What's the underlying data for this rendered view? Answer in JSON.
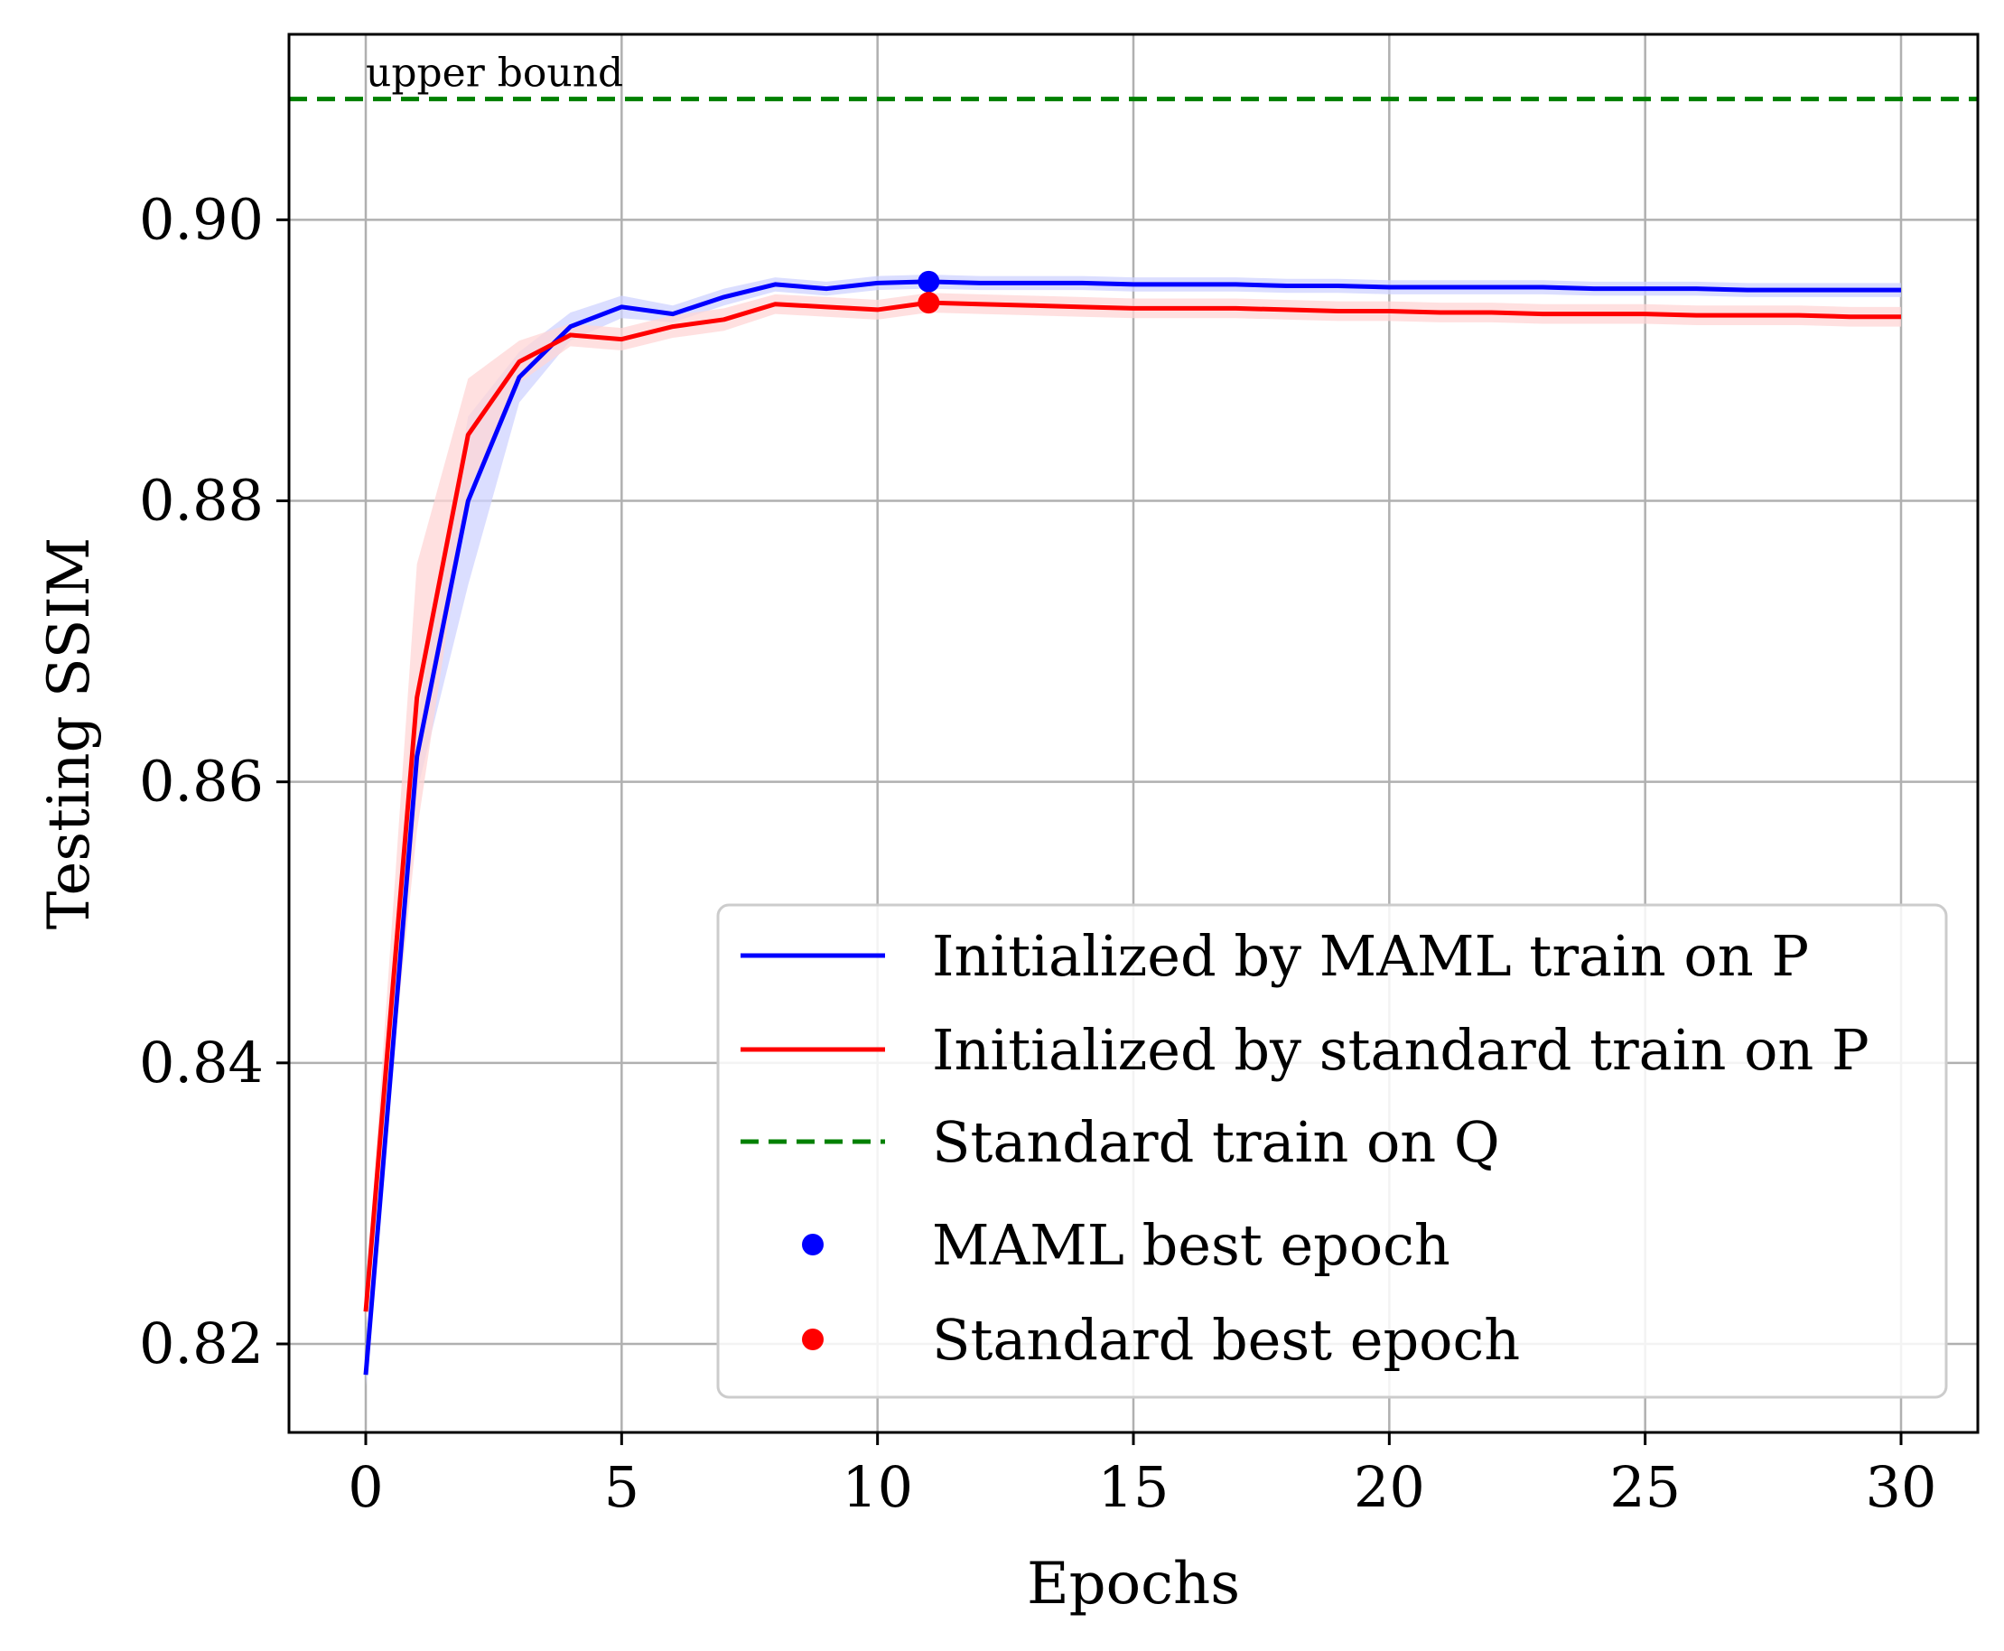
{
  "chart_data": {
    "type": "line",
    "xlabel": "Epochs",
    "ylabel": "Testing SSIM",
    "xlim": [
      -1.5,
      31.5
    ],
    "ylim": [
      0.8137,
      0.9132
    ],
    "xticks": [
      0,
      5,
      10,
      15,
      20,
      25,
      30
    ],
    "xtick_labels": [
      "0",
      "5",
      "10",
      "15",
      "20",
      "25",
      "30"
    ],
    "yticks": [
      0.82,
      0.84,
      0.86,
      0.88,
      0.9
    ],
    "ytick_labels": [
      "0.82",
      "0.84",
      "0.86",
      "0.88",
      "0.90"
    ],
    "grid": true,
    "legend_position": "lower-right",
    "x": [
      0,
      1,
      2,
      3,
      4,
      5,
      6,
      7,
      8,
      9,
      10,
      11,
      12,
      13,
      14,
      15,
      16,
      17,
      18,
      19,
      20,
      21,
      22,
      23,
      24,
      25,
      26,
      27,
      28,
      29,
      30
    ],
    "series": [
      {
        "name": "Initialized by MAML train on P",
        "color": "#0000ff",
        "band_color": "#cfd3ff",
        "values": [
          0.8178,
          0.8618,
          0.88,
          0.8888,
          0.8924,
          0.8938,
          0.8933,
          0.8945,
          0.8954,
          0.8951,
          0.8955,
          0.8956,
          0.8955,
          0.8955,
          0.8955,
          0.8954,
          0.8954,
          0.8954,
          0.8953,
          0.8953,
          0.8952,
          0.8952,
          0.8952,
          0.8952,
          0.8951,
          0.8951,
          0.8951,
          0.895,
          0.895,
          0.895,
          0.895
        ],
        "spread": [
          0.0008,
          0.0025,
          0.006,
          0.0018,
          0.001,
          0.0008,
          0.0006,
          0.0006,
          0.0005,
          0.0005,
          0.0005,
          0.0005,
          0.0005,
          0.0005,
          0.0005,
          0.0005,
          0.0005,
          0.0005,
          0.0005,
          0.0005,
          0.0005,
          0.0005,
          0.0005,
          0.0005,
          0.0005,
          0.0005,
          0.0005,
          0.0005,
          0.0005,
          0.0005,
          0.0005
        ]
      },
      {
        "name": "Initialized by standard train on P",
        "color": "#ff0000",
        "band_color": "#ffd6d6",
        "values": [
          0.8223,
          0.866,
          0.8847,
          0.8899,
          0.8918,
          0.8915,
          0.8924,
          0.8929,
          0.894,
          0.8938,
          0.8936,
          0.8941,
          0.894,
          0.8939,
          0.8938,
          0.8937,
          0.8937,
          0.8937,
          0.8936,
          0.8935,
          0.8935,
          0.8934,
          0.8934,
          0.8933,
          0.8933,
          0.8933,
          0.8932,
          0.8932,
          0.8932,
          0.8931,
          0.8931
        ],
        "spread": [
          0.0008,
          0.0095,
          0.004,
          0.0015,
          0.0008,
          0.0008,
          0.0008,
          0.0008,
          0.0007,
          0.0007,
          0.0007,
          0.0007,
          0.0007,
          0.0007,
          0.0007,
          0.0007,
          0.0007,
          0.0007,
          0.0007,
          0.0007,
          0.0007,
          0.0007,
          0.0007,
          0.0007,
          0.0007,
          0.0007,
          0.0007,
          0.0007,
          0.0007,
          0.0007,
          0.0007
        ]
      }
    ],
    "reference_line": {
      "name": "Standard train on Q",
      "color": "#008000",
      "style": "dashed",
      "value": 0.9086,
      "annotation": "upper bound",
      "annotation_x": 0
    },
    "markers": [
      {
        "name": "MAML best epoch",
        "color": "#0000ff",
        "x": 11,
        "y": 0.8956
      },
      {
        "name": "Standard best epoch",
        "color": "#ff0000",
        "x": 11,
        "y": 0.8941
      }
    ]
  }
}
